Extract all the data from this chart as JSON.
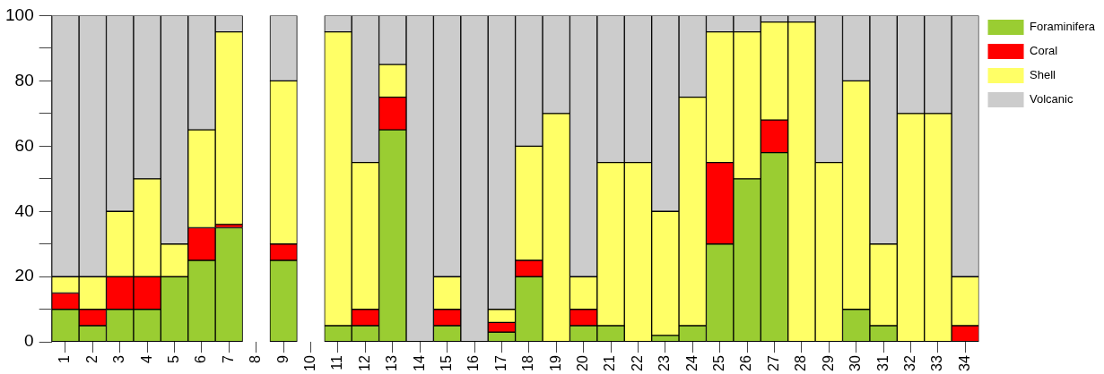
{
  "chart_data": {
    "type": "bar",
    "stacked": true,
    "categories": [
      "1",
      "2",
      "3",
      "4",
      "5",
      "6",
      "7",
      "8",
      "9",
      "10",
      "11",
      "12",
      "13",
      "14",
      "15",
      "16",
      "17",
      "18",
      "19",
      "20",
      "21",
      "22",
      "23",
      "24",
      "25",
      "26",
      "27",
      "28",
      "29",
      "30",
      "31",
      "32",
      "33",
      "34"
    ],
    "series": [
      {
        "name": "Foraminifera",
        "color": "#9acd32",
        "values": [
          10,
          5,
          10,
          10,
          20,
          25,
          35,
          0,
          25,
          0,
          5,
          5,
          65,
          0,
          5,
          0,
          3,
          20,
          0,
          5,
          5,
          0,
          2,
          5,
          30,
          50,
          58,
          0,
          0,
          10,
          5,
          0,
          0,
          0
        ]
      },
      {
        "name": "Coral",
        "color": "#ff0000",
        "values": [
          5,
          5,
          10,
          10,
          0,
          10,
          1,
          0,
          5,
          0,
          0,
          5,
          10,
          0,
          5,
          0,
          3,
          5,
          0,
          5,
          0,
          0,
          0,
          0,
          25,
          0,
          10,
          0,
          0,
          0,
          0,
          0,
          0,
          5
        ]
      },
      {
        "name": "Shell",
        "color": "#ffff66",
        "values": [
          5,
          10,
          20,
          30,
          10,
          30,
          59,
          0,
          50,
          0,
          90,
          45,
          10,
          0,
          10,
          0,
          4,
          35,
          70,
          10,
          50,
          55,
          38,
          70,
          40,
          45,
          30,
          98,
          55,
          70,
          25,
          70,
          70,
          15
        ]
      },
      {
        "name": "Volcanic",
        "color": "#cccccc",
        "values": [
          80,
          80,
          60,
          50,
          70,
          35,
          5,
          0,
          20,
          0,
          5,
          45,
          15,
          100,
          80,
          100,
          90,
          40,
          30,
          80,
          45,
          45,
          60,
          25,
          5,
          5,
          2,
          2,
          45,
          20,
          70,
          30,
          30,
          80
        ]
      }
    ],
    "ylim": [
      0,
      100
    ],
    "yticks": [
      0,
      {
        "value": 10,
        "label": null
      },
      20,
      {
        "value": 30,
        "label": null
      },
      40,
      {
        "value": 50,
        "label": null
      },
      60,
      {
        "value": 70,
        "label": null
      },
      80,
      {
        "value": 90,
        "label": null
      },
      100
    ],
    "grid": false,
    "legend": "top right"
  }
}
